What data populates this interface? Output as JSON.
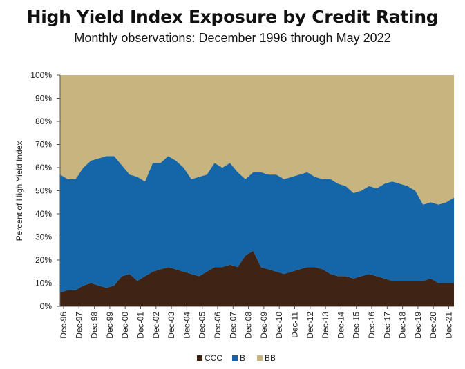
{
  "header": {
    "title": "High Yield Index Exposure by Credit Rating",
    "subtitle": "Monthly observations: December 1996 through May 2022"
  },
  "colors": {
    "CCC": "#3f2416",
    "B": "#1466a8",
    "BB": "#c7b47e"
  },
  "chart_data": {
    "type": "area",
    "stacked": true,
    "ylabel": "Percent of High Yield Index",
    "ylim": [
      0,
      100
    ],
    "yticks": [
      "0%",
      "10%",
      "20%",
      "30%",
      "40%",
      "50%",
      "60%",
      "70%",
      "80%",
      "90%",
      "100%"
    ],
    "xticks": [
      "Dec-96",
      "Dec-97",
      "Dec-98",
      "Dec-99",
      "Dec-00",
      "Dec-01",
      "Dec-02",
      "Dec-03",
      "Dec-04",
      "Dec-05",
      "Dec-06",
      "Dec-07",
      "Dec-08",
      "Dec-09",
      "Dec-10",
      "Dec-11",
      "Dec-12",
      "Dec-13",
      "Dec-14",
      "Dec-15",
      "Dec-16",
      "Dec-17",
      "Dec-18",
      "Dec-19",
      "Dec-20",
      "Dec-21"
    ],
    "x": [
      "Dec-96",
      "Jun-97",
      "Dec-97",
      "Jun-98",
      "Dec-98",
      "Jun-99",
      "Dec-99",
      "Jun-00",
      "Dec-00",
      "Jun-01",
      "Dec-01",
      "Jun-02",
      "Dec-02",
      "Jun-03",
      "Dec-03",
      "Jun-04",
      "Dec-04",
      "Jun-05",
      "Dec-05",
      "Jun-06",
      "Dec-06",
      "Jun-07",
      "Dec-07",
      "Jun-08",
      "Dec-08",
      "Jun-09",
      "Dec-09",
      "Jun-10",
      "Dec-10",
      "Jun-11",
      "Dec-11",
      "Jun-12",
      "Dec-12",
      "Jun-13",
      "Dec-13",
      "Jun-14",
      "Dec-14",
      "Jun-15",
      "Dec-15",
      "Jun-16",
      "Dec-16",
      "Jun-17",
      "Dec-17",
      "Jun-18",
      "Dec-18",
      "Jun-19",
      "Dec-19",
      "Jun-20",
      "Dec-20",
      "Jun-21",
      "Dec-21",
      "May-22"
    ],
    "legend": [
      "CCC",
      "B",
      "BB"
    ],
    "legend_position": "bottom",
    "series": [
      {
        "name": "CCC",
        "values": [
          6,
          7,
          7,
          9,
          10,
          9,
          8,
          9,
          13,
          14,
          11,
          13,
          15,
          16,
          17,
          16,
          15,
          14,
          13,
          15,
          17,
          17,
          18,
          17,
          22,
          24,
          17,
          16,
          15,
          14,
          15,
          16,
          17,
          17,
          16,
          14,
          13,
          13,
          12,
          13,
          14,
          13,
          12,
          11,
          11,
          11,
          11,
          11,
          12,
          10,
          10,
          10
        ]
      },
      {
        "name": "B",
        "values": [
          51,
          48,
          48,
          51,
          53,
          55,
          57,
          56,
          48,
          43,
          45,
          41,
          47,
          46,
          48,
          47,
          45,
          41,
          43,
          42,
          45,
          43,
          44,
          41,
          33,
          34,
          41,
          41,
          42,
          41,
          41,
          41,
          41,
          39,
          39,
          41,
          40,
          39,
          37,
          37,
          38,
          38,
          41,
          43,
          42,
          41,
          39,
          33,
          33,
          34,
          35,
          37
        ]
      },
      {
        "name": "BB",
        "values": [
          43,
          45,
          45,
          40,
          37,
          36,
          35,
          35,
          39,
          43,
          44,
          46,
          38,
          38,
          35,
          37,
          40,
          45,
          44,
          43,
          38,
          40,
          38,
          42,
          45,
          42,
          42,
          43,
          43,
          45,
          44,
          43,
          42,
          44,
          45,
          45,
          47,
          48,
          51,
          50,
          48,
          49,
          47,
          46,
          47,
          48,
          50,
          56,
          55,
          56,
          55,
          53
        ]
      }
    ]
  }
}
